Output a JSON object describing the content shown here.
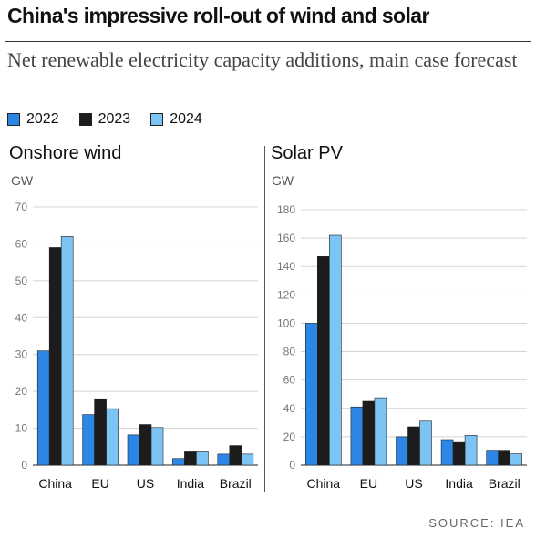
{
  "header": {
    "title": "China's impressive roll-out of wind and solar",
    "subtitle": "Net renewable electricity capacity additions, main case forecast"
  },
  "legend": [
    {
      "label": "2022",
      "color": "#2b86e6"
    },
    {
      "label": "2023",
      "color": "#1c1c1c"
    },
    {
      "label": "2024",
      "color": "#7cc4f4"
    }
  ],
  "source": "SOURCE: IEA",
  "chart_data": [
    {
      "type": "bar",
      "title": "Onshore wind",
      "ylabel": "GW",
      "categories": [
        "China",
        "EU",
        "US",
        "India",
        "Brazil"
      ],
      "ylim": [
        0,
        70
      ],
      "yticks": [
        0,
        10,
        20,
        30,
        40,
        50,
        60,
        70
      ],
      "grid": true,
      "series": [
        {
          "name": "2022",
          "color": "#2b86e6",
          "values": [
            31,
            13.7,
            8.2,
            1.8,
            3
          ]
        },
        {
          "name": "2023",
          "color": "#1c1c1c",
          "values": [
            59,
            18,
            11,
            3.6,
            5.3
          ]
        },
        {
          "name": "2024",
          "color": "#7cc4f4",
          "values": [
            62,
            15.3,
            10.2,
            3.6,
            3
          ]
        }
      ]
    },
    {
      "type": "bar",
      "title": "Solar PV",
      "ylabel": "GW",
      "categories": [
        "China",
        "EU",
        "US",
        "India",
        "Brazil"
      ],
      "ylim": [
        0,
        180
      ],
      "yticks": [
        0,
        20,
        40,
        60,
        80,
        100,
        120,
        140,
        160,
        180
      ],
      "grid": true,
      "series": [
        {
          "name": "2022",
          "color": "#2b86e6",
          "values": [
            100,
            41,
            20,
            18,
            10.5
          ]
        },
        {
          "name": "2023",
          "color": "#1c1c1c",
          "values": [
            147,
            45,
            27,
            16,
            10.5
          ]
        },
        {
          "name": "2024",
          "color": "#7cc4f4",
          "values": [
            162,
            47.5,
            31,
            21,
            8
          ]
        }
      ]
    }
  ]
}
